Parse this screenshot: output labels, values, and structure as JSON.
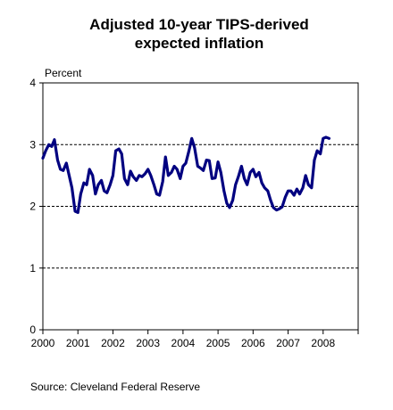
{
  "chart_data": {
    "type": "line",
    "title_line1": "Adjusted 10-year TIPS-derived",
    "title_line2": "expected inflation",
    "ylabel": "Percent",
    "ylim": [
      0,
      4
    ],
    "xlim": [
      2000,
      2009
    ],
    "y_ticks": [
      "0",
      "1",
      "2",
      "3",
      "4"
    ],
    "x_ticks": [
      "2000",
      "2001",
      "2002",
      "2003",
      "2004",
      "2005",
      "2006",
      "2007",
      "2008"
    ],
    "grid": "horizontal-dashed",
    "source": "Source: Cleveland Federal Reserve",
    "line_color": "#000080",
    "series": [
      {
        "x": [
          2000.0,
          2000.08,
          2000.17,
          2000.25,
          2000.33,
          2000.42,
          2000.5,
          2000.58,
          2000.67,
          2000.75,
          2000.83,
          2000.92,
          2001.0,
          2001.08,
          2001.17,
          2001.25,
          2001.33,
          2001.42,
          2001.5,
          2001.58,
          2001.67,
          2001.75,
          2001.83,
          2001.92,
          2002.0,
          2002.08,
          2002.17,
          2002.25,
          2002.33,
          2002.42,
          2002.5,
          2002.58,
          2002.67,
          2002.75,
          2002.83,
          2002.92,
          2003.0,
          2003.08,
          2003.17,
          2003.25,
          2003.33,
          2003.42,
          2003.5,
          2003.58,
          2003.67,
          2003.75,
          2003.83,
          2003.92,
          2004.0,
          2004.08,
          2004.17,
          2004.25,
          2004.33,
          2004.42,
          2004.5,
          2004.58,
          2004.67,
          2004.75,
          2004.83,
          2004.92,
          2005.0,
          2005.08,
          2005.17,
          2005.25,
          2005.33,
          2005.42,
          2005.5,
          2005.58,
          2005.67,
          2005.75,
          2005.83,
          2005.92,
          2006.0,
          2006.08,
          2006.17,
          2006.25,
          2006.33,
          2006.42,
          2006.5,
          2006.58,
          2006.67,
          2006.75,
          2006.83,
          2006.92,
          2007.0,
          2007.08,
          2007.17,
          2007.25,
          2007.33,
          2007.42,
          2007.5,
          2007.58,
          2007.67,
          2007.75,
          2007.83,
          2007.92,
          2008.0,
          2008.08,
          2008.17
        ],
        "values": [
          2.78,
          2.9,
          3.0,
          2.97,
          3.08,
          2.75,
          2.6,
          2.58,
          2.7,
          2.5,
          2.3,
          1.92,
          1.9,
          2.2,
          2.38,
          2.35,
          2.6,
          2.5,
          2.2,
          2.35,
          2.42,
          2.25,
          2.22,
          2.35,
          2.5,
          2.9,
          2.93,
          2.85,
          2.45,
          2.35,
          2.57,
          2.48,
          2.42,
          2.5,
          2.48,
          2.53,
          2.6,
          2.5,
          2.35,
          2.2,
          2.18,
          2.4,
          2.8,
          2.5,
          2.55,
          2.65,
          2.6,
          2.45,
          2.65,
          2.7,
          2.9,
          3.1,
          2.95,
          2.65,
          2.62,
          2.58,
          2.75,
          2.74,
          2.45,
          2.46,
          2.72,
          2.55,
          2.25,
          2.05,
          1.98,
          2.1,
          2.35,
          2.48,
          2.65,
          2.45,
          2.35,
          2.55,
          2.6,
          2.48,
          2.55,
          2.38,
          2.3,
          2.25,
          2.1,
          1.98,
          1.94,
          1.96,
          1.99,
          2.15,
          2.25,
          2.25,
          2.18,
          2.28,
          2.2,
          2.3,
          2.5,
          2.35,
          2.3,
          2.75,
          2.9,
          2.85,
          3.1,
          3.12,
          3.1
        ]
      }
    ]
  }
}
